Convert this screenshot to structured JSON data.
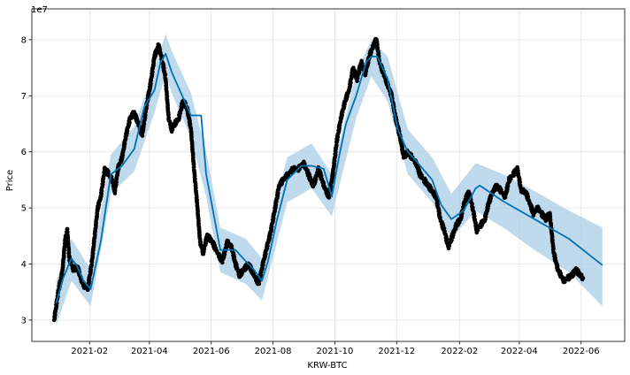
{
  "chart_data": {
    "type": "line",
    "title": "",
    "xlabel": "KRW-BTC",
    "ylabel": "Price",
    "y_scale_label": "1e7",
    "grid": true,
    "x_ticks": [
      "2021-02",
      "2021-04",
      "2021-06",
      "2021-08",
      "2021-10",
      "2021-12",
      "2022-02",
      "2022-04",
      "2022-06"
    ],
    "y_ticks": [
      3,
      4,
      5,
      6,
      7,
      8
    ],
    "xlim": [
      "2020-12-06",
      "2022-07-14"
    ],
    "ylim": [
      2.62,
      8.55
    ],
    "colors": {
      "forecast": "#0072b2",
      "band": "#a9cde6",
      "points": "#000000"
    },
    "series": [
      {
        "kind": "forecast",
        "x": [
          "2020-12-30",
          "2021-01-06",
          "2021-01-14",
          "2021-01-19",
          "2021-01-26",
          "2021-02-02",
          "2021-02-12",
          "2021-02-22",
          "2021-03-05",
          "2021-03-17",
          "2021-03-27",
          "2021-04-06",
          "2021-04-12",
          "2021-04-17",
          "2021-04-23",
          "2021-05-12",
          "2021-05-22",
          "2021-05-27",
          "2021-06-10",
          "2021-06-25",
          "2021-07-05",
          "2021-07-13",
          "2021-07-21",
          "2021-07-27",
          "2021-08-05",
          "2021-08-15",
          "2021-08-29",
          "2021-09-08",
          "2021-09-20",
          "2021-09-28",
          "2021-10-05",
          "2021-10-12",
          "2021-10-22",
          "2021-11-01",
          "2021-11-06",
          "2021-11-12",
          "2021-11-22",
          "2021-12-02",
          "2021-12-12",
          "2021-12-22",
          "2022-01-05",
          "2022-01-14",
          "2022-01-24",
          "2022-02-05",
          "2022-02-17",
          "2022-02-21",
          "2022-03-16",
          "2022-04-16",
          "2022-05-20",
          "2022-06-22"
        ],
        "y": [
          3.3,
          3.75,
          4.1,
          3.98,
          3.7,
          3.55,
          4.4,
          5.6,
          5.75,
          6.05,
          6.8,
          7.1,
          7.6,
          7.75,
          7.42,
          6.65,
          6.65,
          5.6,
          4.25,
          4.25,
          4.05,
          3.9,
          3.7,
          4.05,
          4.8,
          5.5,
          5.75,
          5.75,
          5.7,
          5.2,
          5.9,
          6.5,
          7.0,
          7.6,
          7.7,
          7.7,
          7.3,
          6.4,
          6.0,
          5.8,
          5.5,
          5.05,
          4.8,
          4.95,
          5.35,
          5.4,
          5.12,
          4.8,
          4.45,
          3.98
        ]
      },
      {
        "kind": "interval",
        "x": [
          "2020-12-30",
          "2021-01-14",
          "2021-02-02",
          "2021-02-22",
          "2021-03-17",
          "2021-04-06",
          "2021-04-17",
          "2021-04-23",
          "2021-05-12",
          "2021-05-27",
          "2021-06-10",
          "2021-07-05",
          "2021-07-21",
          "2021-08-15",
          "2021-09-08",
          "2021-09-28",
          "2021-10-22",
          "2021-11-06",
          "2021-11-22",
          "2021-12-12",
          "2022-01-05",
          "2022-01-24",
          "2022-02-17",
          "2022-03-16",
          "2022-04-16",
          "2022-05-20",
          "2022-06-22"
        ],
        "upper": [
          3.7,
          4.45,
          3.9,
          5.95,
          6.45,
          7.5,
          8.1,
          7.8,
          7.05,
          6.0,
          4.65,
          4.45,
          4.1,
          5.9,
          6.15,
          5.6,
          7.4,
          8.0,
          7.7,
          6.4,
          5.9,
          5.25,
          5.8,
          5.6,
          5.3,
          4.95,
          4.65
        ],
        "lower": [
          2.9,
          3.7,
          3.25,
          5.25,
          5.65,
          6.7,
          7.4,
          7.05,
          6.25,
          5.2,
          3.85,
          3.65,
          3.35,
          5.1,
          5.35,
          4.85,
          6.6,
          7.35,
          6.9,
          5.6,
          5.1,
          4.45,
          4.95,
          4.65,
          4.25,
          3.85,
          3.25
        ]
      },
      {
        "kind": "observed",
        "x": [
          "2020-12-28",
          "2021-01-01",
          "2021-01-05",
          "2021-01-08",
          "2021-01-10",
          "2021-01-12",
          "2021-01-16",
          "2021-01-20",
          "2021-01-24",
          "2021-01-27",
          "2021-01-30",
          "2021-02-03",
          "2021-02-06",
          "2021-02-09",
          "2021-02-12",
          "2021-02-16",
          "2021-02-20",
          "2021-02-23",
          "2021-02-26",
          "2021-03-01",
          "2021-03-05",
          "2021-03-09",
          "2021-03-13",
          "2021-03-17",
          "2021-03-21",
          "2021-03-25",
          "2021-03-29",
          "2021-04-02",
          "2021-04-06",
          "2021-04-10",
          "2021-04-14",
          "2021-04-17",
          "2021-04-20",
          "2021-04-23",
          "2021-04-26",
          "2021-04-30",
          "2021-05-04",
          "2021-05-08",
          "2021-05-12",
          "2021-05-15",
          "2021-05-18",
          "2021-05-21",
          "2021-05-24",
          "2021-05-28",
          "2021-06-02",
          "2021-06-07",
          "2021-06-12",
          "2021-06-17",
          "2021-06-21",
          "2021-06-25",
          "2021-06-29",
          "2021-07-03",
          "2021-07-08",
          "2021-07-13",
          "2021-07-18",
          "2021-07-22",
          "2021-07-26",
          "2021-07-30",
          "2021-08-03",
          "2021-08-07",
          "2021-08-11",
          "2021-08-16",
          "2021-08-21",
          "2021-08-26",
          "2021-08-31",
          "2021-09-05",
          "2021-09-07",
          "2021-09-10",
          "2021-09-15",
          "2021-09-20",
          "2021-09-25",
          "2021-09-29",
          "2021-10-03",
          "2021-10-07",
          "2021-10-11",
          "2021-10-15",
          "2021-10-19",
          "2021-10-23",
          "2021-10-27",
          "2021-10-31",
          "2021-11-04",
          "2021-11-08",
          "2021-11-11",
          "2021-11-14",
          "2021-11-18",
          "2021-11-22",
          "2021-11-26",
          "2021-11-30",
          "2021-12-04",
          "2021-12-08",
          "2021-12-12",
          "2021-12-16",
          "2021-12-20",
          "2021-12-24",
          "2021-12-28",
          "2022-01-01",
          "2022-01-05",
          "2022-01-09",
          "2022-01-13",
          "2022-01-17",
          "2022-01-21",
          "2022-01-25",
          "2022-01-29",
          "2022-02-02",
          "2022-02-06",
          "2022-02-10",
          "2022-02-14",
          "2022-02-18",
          "2022-02-22",
          "2022-02-26",
          "2022-03-02",
          "2022-03-06",
          "2022-03-10",
          "2022-03-14",
          "2022-03-18",
          "2022-03-22",
          "2022-03-26",
          "2022-03-30",
          "2022-04-03",
          "2022-04-07",
          "2022-04-11",
          "2022-04-15",
          "2022-04-19",
          "2022-04-23",
          "2022-04-27",
          "2022-05-01",
          "2022-05-05",
          "2022-05-09",
          "2022-05-12",
          "2022-05-15",
          "2022-05-19",
          "2022-05-23",
          "2022-05-27",
          "2022-05-31",
          "2022-06-03"
        ],
        "y": [
          3.0,
          3.5,
          3.85,
          4.45,
          4.6,
          4.1,
          3.9,
          3.95,
          3.7,
          3.6,
          3.55,
          4.0,
          4.5,
          5.0,
          5.2,
          5.7,
          5.6,
          5.5,
          5.3,
          5.7,
          5.9,
          6.3,
          6.6,
          6.7,
          6.5,
          6.3,
          6.8,
          7.2,
          7.7,
          7.9,
          7.6,
          7.3,
          6.6,
          6.4,
          6.5,
          6.6,
          6.9,
          6.8,
          6.4,
          5.7,
          5.1,
          4.4,
          4.2,
          4.5,
          4.4,
          4.2,
          4.05,
          4.4,
          4.3,
          4.0,
          3.8,
          3.9,
          4.0,
          3.8,
          3.65,
          4.0,
          4.3,
          4.6,
          5.0,
          5.4,
          5.5,
          5.6,
          5.7,
          5.7,
          5.8,
          5.6,
          5.5,
          5.4,
          5.7,
          5.4,
          5.2,
          5.6,
          6.2,
          6.6,
          6.9,
          7.1,
          7.5,
          7.3,
          7.6,
          7.4,
          7.7,
          7.9,
          8.0,
          7.6,
          7.4,
          7.2,
          7.0,
          6.6,
          6.3,
          5.9,
          6.0,
          5.9,
          5.8,
          5.6,
          5.5,
          5.4,
          5.3,
          5.2,
          4.8,
          4.6,
          4.3,
          4.5,
          4.7,
          4.8,
          5.1,
          5.3,
          5.0,
          4.6,
          4.7,
          4.8,
          5.1,
          5.3,
          5.4,
          5.3,
          5.2,
          5.5,
          5.6,
          5.7,
          5.3,
          5.3,
          5.1,
          4.9,
          5.0,
          4.9,
          4.8,
          4.9,
          4.2,
          3.9,
          3.8,
          3.7,
          3.75,
          3.8,
          3.9,
          3.8,
          3.75
        ]
      }
    ]
  }
}
